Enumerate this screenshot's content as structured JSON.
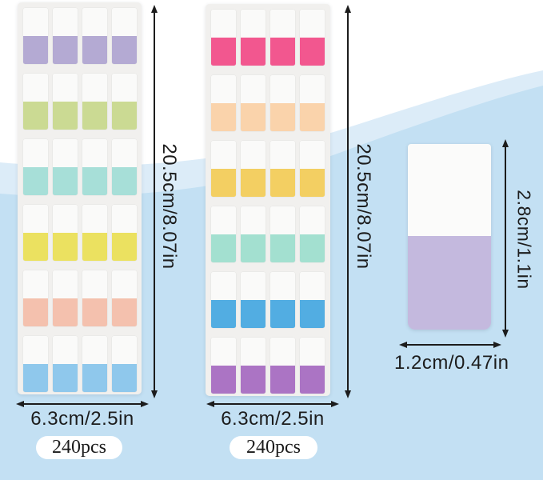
{
  "scene": {
    "background_top_color": "#ffffff",
    "wave_light_color": "#dcecf8",
    "wave_main_color": "#c3e0f3",
    "annotation_color": "#1c1c1c"
  },
  "sheets": [
    {
      "id": "left",
      "columns": 4,
      "rows": 6,
      "row_colors": [
        "#b4aad3",
        "#cbda93",
        "#a7dfd8",
        "#ebe160",
        "#f4c1ae",
        "#8fc8ec"
      ],
      "height_label": "20.5cm/8.07in",
      "width_label": "6.3cm/2.5in",
      "count_label": "240pcs"
    },
    {
      "id": "middle",
      "columns": 4,
      "rows": 6,
      "row_colors": [
        "#f2578f",
        "#fad3ab",
        "#f3cf62",
        "#a3e0d0",
        "#52ade2",
        "#ab74c4"
      ],
      "height_label": "20.5cm/8.07in",
      "width_label": "6.3cm/2.5in",
      "count_label": "240pcs"
    }
  ],
  "single_tab": {
    "top_color": "#fbfbfa",
    "bottom_color": "#c4b9de",
    "height_label": "2.8cm/1.1in",
    "width_label": "1.2cm/0.47in"
  }
}
